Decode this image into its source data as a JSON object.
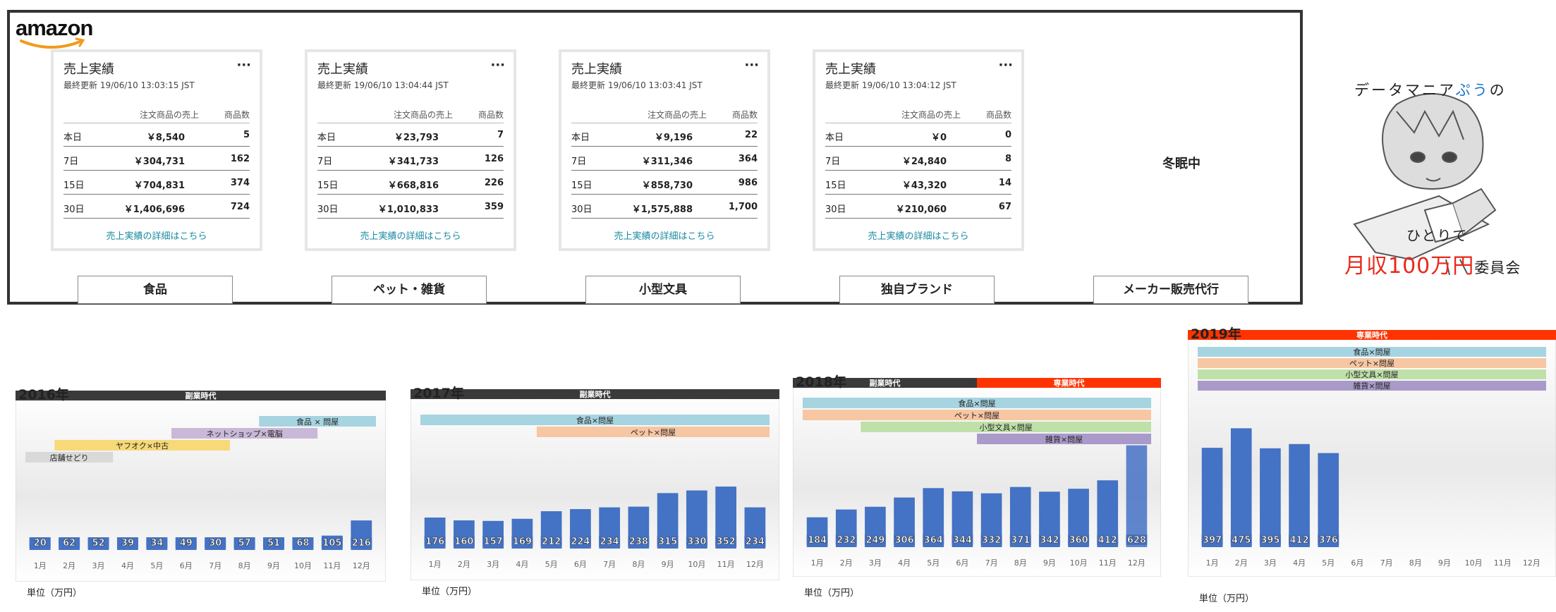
{
  "brand": {
    "logo_text": "amazon"
  },
  "cards": [
    {
      "title": "売上実績",
      "updated": "最終更新 19/06/10 13:03:15 JST",
      "col_sales": "注文商品の売上",
      "col_count": "商品数",
      "rows": [
        {
          "period": "本日",
          "sales": "￥8,540",
          "count": "5"
        },
        {
          "period": "7日",
          "sales": "￥304,731",
          "count": "162"
        },
        {
          "period": "15日",
          "sales": "￥704,831",
          "count": "374"
        },
        {
          "period": "30日",
          "sales": "￥1,406,696",
          "count": "724"
        }
      ],
      "link": "売上実績の詳細はこちら",
      "category": "食品"
    },
    {
      "title": "売上実績",
      "updated": "最終更新 19/06/10 13:04:44 JST",
      "col_sales": "注文商品の売上",
      "col_count": "商品数",
      "rows": [
        {
          "period": "本日",
          "sales": "￥23,793",
          "count": "7"
        },
        {
          "period": "7日",
          "sales": "￥341,733",
          "count": "126"
        },
        {
          "period": "15日",
          "sales": "￥668,816",
          "count": "226"
        },
        {
          "period": "30日",
          "sales": "￥1,010,833",
          "count": "359"
        }
      ],
      "link": "売上実績の詳細はこちら",
      "category": "ペット・雑貨"
    },
    {
      "title": "売上実績",
      "updated": "最終更新 19/06/10 13:03:41 JST",
      "col_sales": "注文商品の売上",
      "col_count": "商品数",
      "rows": [
        {
          "period": "本日",
          "sales": "￥9,196",
          "count": "22"
        },
        {
          "period": "7日",
          "sales": "￥311,346",
          "count": "364"
        },
        {
          "period": "15日",
          "sales": "￥858,730",
          "count": "986"
        },
        {
          "period": "30日",
          "sales": "￥1,575,888",
          "count": "1,700"
        }
      ],
      "link": "売上実績の詳細はこちら",
      "category": "小型文具"
    },
    {
      "title": "売上実績",
      "updated": "最終更新 19/06/10 13:04:12 JST",
      "col_sales": "注文商品の売上",
      "col_count": "商品数",
      "rows": [
        {
          "period": "本日",
          "sales": "￥0",
          "count": "0"
        },
        {
          "period": "7日",
          "sales": "￥24,840",
          "count": "8"
        },
        {
          "period": "15日",
          "sales": "￥43,320",
          "count": "14"
        },
        {
          "period": "30日",
          "sales": "￥210,060",
          "count": "67"
        }
      ],
      "link": "売上実績の詳細はこちら",
      "category": "独自ブランド"
    }
  ],
  "hibernating": {
    "label": "冬眠中",
    "category": "メーカー販売代行"
  },
  "mascot": {
    "line1_a": "データマニア",
    "line1_b": "ぷう",
    "line1_c": "の",
    "line2": "ひとりで",
    "line3_a": "月収100万円",
    "line3_b": "委員会"
  },
  "chart_data": [
    {
      "type": "bar",
      "title": "2016年",
      "era_labels": [
        "副業時代"
      ],
      "era_colors": [
        "#3a3a3a"
      ],
      "categories": [
        "1月",
        "2月",
        "3月",
        "4月",
        "5月",
        "6月",
        "7月",
        "8月",
        "9月",
        "10月",
        "11月",
        "12月"
      ],
      "values": [
        20,
        62,
        52,
        39,
        34,
        49,
        30,
        57,
        51,
        68,
        105,
        216
      ],
      "ylim": [
        0,
        700
      ],
      "unit": "単位（万円）",
      "annotations": [
        {
          "label": "食品 × 問屋",
          "color": "#a6d4e1",
          "start": 9,
          "end": 12
        },
        {
          "label": "ネットショップ×電脳",
          "color": "#c9b8d8",
          "start": 6,
          "end": 10
        },
        {
          "label": "ヤフオク×中古",
          "color": "#f7d978",
          "start": 2,
          "end": 7
        },
        {
          "label": "店舗せどり",
          "color": "#d9d9d9",
          "start": 1,
          "end": 3
        }
      ]
    },
    {
      "type": "bar",
      "title": "2017年",
      "era_labels": [
        "副業時代"
      ],
      "era_colors": [
        "#3a3a3a"
      ],
      "categories": [
        "1月",
        "2月",
        "3月",
        "4月",
        "5月",
        "6月",
        "7月",
        "8月",
        "9月",
        "10月",
        "11月",
        "12月"
      ],
      "values": [
        176,
        160,
        157,
        169,
        212,
        224,
        234,
        238,
        315,
        330,
        352,
        234
      ],
      "ylim": [
        0,
        700
      ],
      "unit": "単位（万円）",
      "annotations": [
        {
          "label": "食品×問屋",
          "color": "#a6d4e1",
          "start": 1,
          "end": 12
        },
        {
          "label": "ペット×問屋",
          "color": "#f7c6a3",
          "start": 5,
          "end": 12
        }
      ]
    },
    {
      "type": "bar",
      "title": "2018年",
      "era_labels": [
        "副業時代",
        "専業時代"
      ],
      "era_colors": [
        "#3a3a3a",
        "#ff3300"
      ],
      "categories": [
        "1月",
        "2月",
        "3月",
        "4月",
        "5月",
        "6月",
        "7月",
        "8月",
        "9月",
        "10月",
        "11月",
        "12月"
      ],
      "values": [
        184,
        232,
        249,
        306,
        364,
        344,
        332,
        371,
        342,
        360,
        412,
        628
      ],
      "ylim": [
        0,
        700
      ],
      "unit": "単位（万円）",
      "annotations": [
        {
          "label": "食品×問屋",
          "color": "#a6d4e1",
          "start": 1,
          "end": 12
        },
        {
          "label": "ペット×問屋",
          "color": "#f7c6a3",
          "start": 1,
          "end": 12
        },
        {
          "label": "小型文具×問屋",
          "color": "#bfe0a8",
          "start": 3,
          "end": 12
        },
        {
          "label": "雑貨×問屋",
          "color": "#a99ac9",
          "start": 7,
          "end": 12
        }
      ]
    },
    {
      "type": "bar",
      "title": "2019年",
      "era_labels": [
        "専業時代"
      ],
      "era_colors": [
        "#ff3300"
      ],
      "categories": [
        "1月",
        "2月",
        "3月",
        "4月",
        "5月",
        "6月",
        "7月",
        "8月",
        "9月",
        "10月",
        "11月",
        "12月"
      ],
      "values": [
        397,
        475,
        395,
        412,
        376,
        null,
        null,
        null,
        null,
        null,
        null,
        null
      ],
      "ylim": [
        0,
        700
      ],
      "unit": "単位（万円）",
      "annotations": [
        {
          "label": "食品×問屋",
          "color": "#a6d4e1",
          "start": 1,
          "end": 12
        },
        {
          "label": "ペット×問屋",
          "color": "#f7c6a3",
          "start": 1,
          "end": 12
        },
        {
          "label": "小型文具×問屋",
          "color": "#bfe0a8",
          "start": 1,
          "end": 12
        },
        {
          "label": "雑貨×問屋",
          "color": "#a99ac9",
          "start": 1,
          "end": 12
        }
      ]
    }
  ]
}
